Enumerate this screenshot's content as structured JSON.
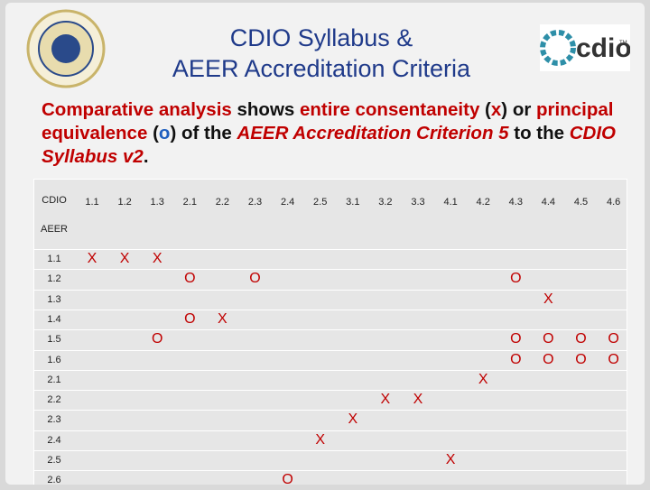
{
  "header": {
    "title_lines": [
      "CDIO Syllabus &",
      "AEER Accreditation Criteria"
    ],
    "logo_text": "cdio",
    "logo_mark": "TM"
  },
  "intro": [
    {
      "text": "Comparative analysis",
      "color": "#c00000",
      "italic": false
    },
    {
      "text": " shows ",
      "color": "#111111",
      "italic": false
    },
    {
      "text": "entire consentaneity",
      "color": "#c00000",
      "italic": false
    },
    {
      "text": " (",
      "color": "#111111",
      "italic": false
    },
    {
      "text": "x",
      "color": "#c00000",
      "italic": false
    },
    {
      "text": ") or ",
      "color": "#111111",
      "italic": false
    },
    {
      "text": "principal equivalence",
      "color": "#c00000",
      "italic": false
    },
    {
      "text": " (",
      "color": "#111111",
      "italic": false
    },
    {
      "text": "o",
      "color": "#1f5fbf",
      "italic": false
    },
    {
      "text": ") of the ",
      "color": "#111111",
      "italic": false
    },
    {
      "text": "AEER Accreditation Criterion 5",
      "color": "#c00000",
      "italic": true
    },
    {
      "text": " to the ",
      "color": "#111111",
      "italic": false
    },
    {
      "text": "CDIO Syllabus v2",
      "color": "#c00000",
      "italic": true
    },
    {
      "text": ".",
      "color": "#111111",
      "italic": false
    }
  ],
  "table": {
    "corner": "CDIO",
    "row_axis": "AEER",
    "mark_color": "#c00000",
    "columns": [
      "1.1",
      "1.2",
      "1.3",
      "2.1",
      "2.2",
      "2.3",
      "2.4",
      "2.5",
      "3.1",
      "3.2",
      "3.3",
      "4.1",
      "4.2",
      "4.3",
      "4.4",
      "4.5",
      "4.6"
    ],
    "rows": [
      {
        "label": "1.1",
        "cells": [
          "X",
          "X",
          "X",
          null,
          null,
          null,
          null,
          null,
          null,
          null,
          null,
          null,
          null,
          null,
          null,
          null,
          null
        ]
      },
      {
        "label": "1.2",
        "cells": [
          null,
          null,
          null,
          "O",
          null,
          "O",
          null,
          null,
          null,
          null,
          null,
          null,
          null,
          "O",
          null,
          null,
          null
        ]
      },
      {
        "label": "1.3",
        "cells": [
          null,
          null,
          null,
          null,
          null,
          null,
          null,
          null,
          null,
          null,
          null,
          null,
          null,
          null,
          "X",
          null,
          null
        ]
      },
      {
        "label": "1.4",
        "cells": [
          null,
          null,
          null,
          "O",
          "X",
          null,
          null,
          null,
          null,
          null,
          null,
          null,
          null,
          null,
          null,
          null,
          null
        ]
      },
      {
        "label": "1.5",
        "cells": [
          null,
          null,
          "O",
          null,
          null,
          null,
          null,
          null,
          null,
          null,
          null,
          null,
          null,
          "O",
          "O",
          "O",
          "O"
        ]
      },
      {
        "label": "1.6",
        "cells": [
          null,
          null,
          null,
          null,
          null,
          null,
          null,
          null,
          null,
          null,
          null,
          null,
          null,
          "O",
          "O",
          "O",
          "O"
        ]
      },
      {
        "label": "2.1",
        "cells": [
          null,
          null,
          null,
          null,
          null,
          null,
          null,
          null,
          null,
          null,
          null,
          null,
          "X",
          null,
          null,
          null,
          null
        ]
      },
      {
        "label": "2.2",
        "cells": [
          null,
          null,
          null,
          null,
          null,
          null,
          null,
          null,
          null,
          "X",
          "X",
          null,
          null,
          null,
          null,
          null,
          null
        ]
      },
      {
        "label": "2.3",
        "cells": [
          null,
          null,
          null,
          null,
          null,
          null,
          null,
          null,
          "X",
          null,
          null,
          null,
          null,
          null,
          null,
          null,
          null
        ]
      },
      {
        "label": "2.4",
        "cells": [
          null,
          null,
          null,
          null,
          null,
          null,
          null,
          "X",
          null,
          null,
          null,
          null,
          null,
          null,
          null,
          null,
          null
        ]
      },
      {
        "label": "2.5",
        "cells": [
          null,
          null,
          null,
          null,
          null,
          null,
          null,
          null,
          null,
          null,
          null,
          "X",
          null,
          null,
          null,
          null,
          null
        ]
      },
      {
        "label": "2.6",
        "cells": [
          null,
          null,
          null,
          null,
          null,
          null,
          "O",
          null,
          null,
          null,
          null,
          null,
          null,
          null,
          null,
          null,
          null
        ]
      }
    ]
  }
}
